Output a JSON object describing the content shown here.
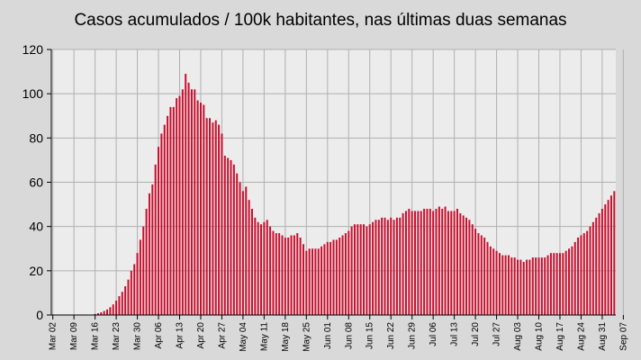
{
  "chart_data": {
    "type": "bar",
    "title": "Casos acumulados / 100k habitantes, nas últimas duas semanas",
    "xlabel": "",
    "ylabel": "",
    "ylim": [
      0,
      120
    ],
    "yticks": [
      0,
      20,
      40,
      60,
      80,
      100,
      120
    ],
    "grid": true,
    "legend": "none",
    "bar_color": "#c8102e",
    "grid_color": "#b0b0b0",
    "plot_background": "#ececec",
    "x_start_date": "2020-03-02",
    "xtick_labels": [
      "Mar 02",
      "Mar 09",
      "Mar 16",
      "Mar 23",
      "Mar 30",
      "Apr 06",
      "Apr 13",
      "Apr 20",
      "Apr 27",
      "May 04",
      "May 11",
      "May 18",
      "May 25",
      "Jun 01",
      "Jun 08",
      "Jun 15",
      "Jun 22",
      "Jun 29",
      "Jul 06",
      "Jul 13",
      "Jul 20",
      "Jul 27",
      "Aug 03",
      "Aug 10",
      "Aug 17",
      "Aug 24",
      "Aug 31",
      "Sep 07"
    ],
    "values": [
      0,
      0,
      0,
      0,
      0,
      0,
      0,
      0,
      0,
      0,
      0,
      0,
      0,
      0,
      0.5,
      0.8,
      1.2,
      1.8,
      2.5,
      3.5,
      4.8,
      6.5,
      8.5,
      10.5,
      13,
      16,
      20,
      23,
      28,
      34,
      40,
      48,
      55,
      59,
      68,
      76,
      82,
      86,
      90,
      94,
      94,
      98,
      99,
      102,
      109,
      105,
      102,
      102,
      97,
      96,
      95,
      89,
      89,
      87,
      88,
      86,
      82,
      72,
      71,
      70,
      68,
      64,
      60,
      56,
      58,
      52,
      48,
      44,
      42,
      41,
      42,
      43,
      40,
      38,
      37,
      37,
      36,
      35,
      35,
      36,
      36,
      37,
      35,
      32,
      29,
      30,
      30,
      30,
      30,
      31,
      32,
      33,
      33,
      34,
      34,
      35,
      36,
      37,
      38,
      40,
      41,
      41,
      41,
      41,
      40,
      41,
      42,
      43,
      43,
      44,
      44,
      43,
      44,
      43,
      44,
      44,
      46,
      47,
      48,
      47,
      47,
      47,
      47,
      48,
      48,
      48,
      47,
      48,
      49,
      48,
      49,
      47,
      47,
      47,
      48,
      46,
      45,
      44,
      43,
      41,
      39,
      37,
      36,
      35,
      33,
      31,
      30,
      29,
      28,
      27,
      27,
      27,
      26,
      26,
      25,
      25,
      24,
      25,
      25,
      26,
      26,
      26,
      26,
      26,
      27,
      28,
      28,
      28,
      28,
      28,
      29,
      30,
      31,
      33,
      35,
      36,
      37,
      38,
      40,
      42,
      44,
      46,
      48,
      50,
      52,
      54,
      56
    ]
  }
}
